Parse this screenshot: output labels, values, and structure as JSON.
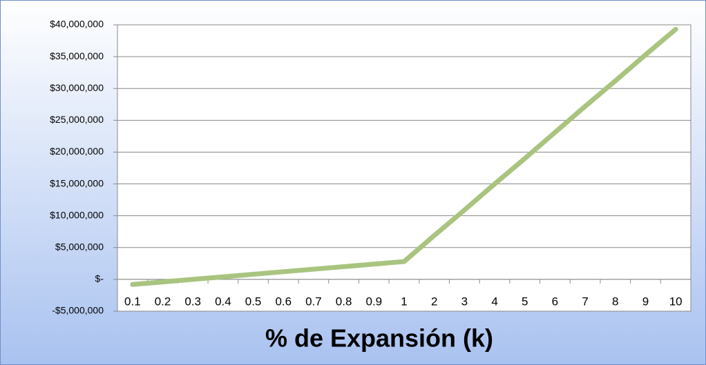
{
  "chart_data": {
    "type": "line",
    "x_label": "% de Expansión (k)",
    "categories": [
      "0.1",
      "0.2",
      "0.3",
      "0.4",
      "0.5",
      "0.6",
      "0.7",
      "0.8",
      "0.9",
      "1",
      "2",
      "3",
      "4",
      "5",
      "6",
      "7",
      "8",
      "9",
      "10"
    ],
    "series": [
      {
        "color": "#a9c47f",
        "values": [
          -800000,
          -400000,
          0,
          400000,
          800000,
          1200000,
          1600000,
          2000000,
          2400000,
          2800000,
          6900000,
          10900000,
          15000000,
          19000000,
          23100000,
          27200000,
          31200000,
          35300000,
          39300000
        ]
      }
    ],
    "ylim": [
      -5000000,
      40000000
    ],
    "yticks": [
      {
        "value": -5000000,
        "label": "-$5,000,000"
      },
      {
        "value": 0,
        "label": "$-"
      },
      {
        "value": 5000000,
        "label": "$5,000,000"
      },
      {
        "value": 10000000,
        "label": "$10,000,000"
      },
      {
        "value": 15000000,
        "label": "$15,000,000"
      },
      {
        "value": 20000000,
        "label": "$20,000,000"
      },
      {
        "value": 25000000,
        "label": "$25,000,000"
      },
      {
        "value": 30000000,
        "label": "$30,000,000"
      },
      {
        "value": 35000000,
        "label": "$35,000,000"
      },
      {
        "value": 40000000,
        "label": "$40,000,000"
      }
    ],
    "grid": true
  }
}
